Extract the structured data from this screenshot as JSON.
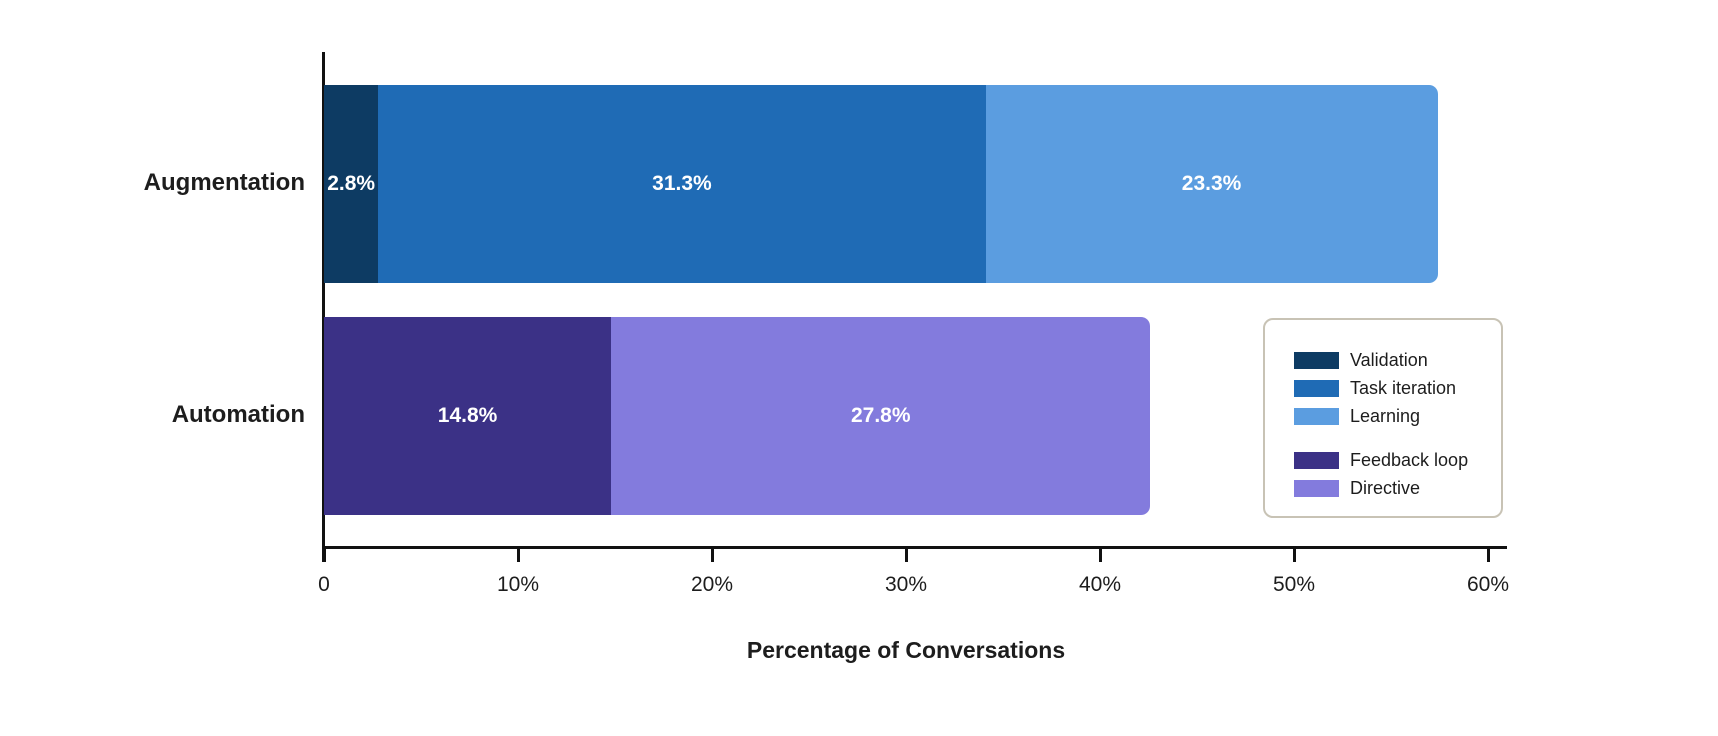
{
  "chart_data": {
    "type": "bar",
    "orientation": "horizontal",
    "stacked": true,
    "title": "",
    "xlabel": "Percentage of Conversations",
    "ylabel": "",
    "xlim": [
      0,
      60
    ],
    "grid": false,
    "x_ticks": [
      {
        "value": 0,
        "label": "0"
      },
      {
        "value": 10,
        "label": "10%"
      },
      {
        "value": 20,
        "label": "20%"
      },
      {
        "value": 30,
        "label": "30%"
      },
      {
        "value": 40,
        "label": "40%"
      },
      {
        "value": 50,
        "label": "50%"
      },
      {
        "value": 60,
        "label": "60%"
      }
    ],
    "rows": [
      {
        "category": "Augmentation",
        "segments": [
          {
            "label": "Validation",
            "value": 2.8,
            "display": "2.8%",
            "color": "#0d3b63"
          },
          {
            "label": "Task iteration",
            "value": 31.3,
            "display": "31.3%",
            "color": "#1f6bb5"
          },
          {
            "label": "Learning",
            "value": 23.3,
            "display": "23.3%",
            "color": "#5b9de0"
          }
        ]
      },
      {
        "category": "Automation",
        "segments": [
          {
            "label": "Feedback loop",
            "value": 14.8,
            "display": "14.8%",
            "color": "#3b3186"
          },
          {
            "label": "Directive",
            "value": 27.8,
            "display": "27.8%",
            "color": "#837bdd"
          }
        ]
      }
    ],
    "legend": {
      "position": "right-middle",
      "groups": [
        [
          {
            "label": "Validation",
            "color": "#0d3b63"
          },
          {
            "label": "Task iteration",
            "color": "#1f6bb5"
          },
          {
            "label": "Learning",
            "color": "#5b9de0"
          }
        ],
        [
          {
            "label": "Feedback loop",
            "color": "#3b3186"
          },
          {
            "label": "Directive",
            "color": "#837bdd"
          }
        ]
      ]
    },
    "colors": {
      "text": "#1d1d1d",
      "axis": "#111111",
      "value_label": "#ffffff",
      "legend_border": "#c8c3b5",
      "background": "#ffffff"
    }
  }
}
